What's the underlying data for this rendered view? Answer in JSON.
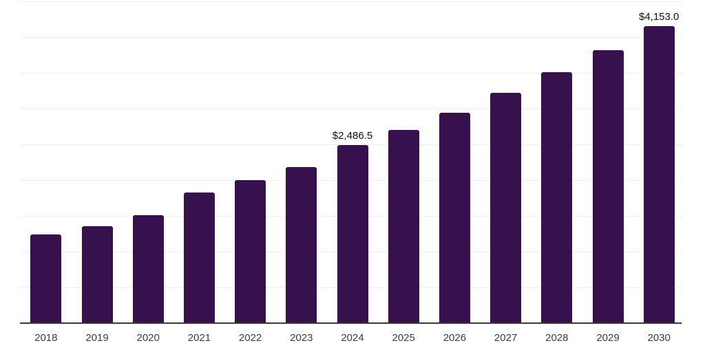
{
  "chart_data": {
    "type": "bar",
    "title": "",
    "xlabel": "",
    "ylabel": "",
    "categories": [
      "2018",
      "2019",
      "2020",
      "2021",
      "2022",
      "2023",
      "2024",
      "2025",
      "2026",
      "2027",
      "2028",
      "2029",
      "2030"
    ],
    "values": [
      1240,
      1355,
      1505,
      1825,
      2000,
      2180,
      2486.5,
      2705,
      2945,
      3220,
      3510,
      3820,
      4153
    ],
    "data_labels": [
      {
        "category": "2024",
        "text": "$2,486.5"
      },
      {
        "category": "2030",
        "text": "$4,153.0"
      }
    ],
    "ylim": [
      0,
      4500
    ],
    "gridline_step": 500,
    "grid": "horizontal",
    "legend": "none",
    "colors": {
      "bar": "#36114d",
      "background": "#ffffff",
      "axis_line": "#3a3a3a",
      "gridline": "#f0f0f0",
      "tick_label": "#3d3d3d",
      "data_label": "#0f0f0f"
    }
  }
}
